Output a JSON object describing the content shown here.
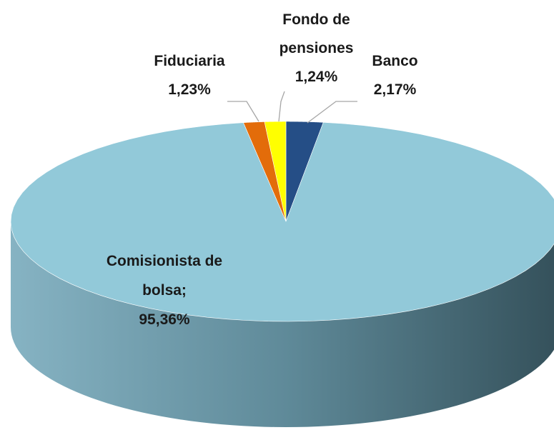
{
  "chart_data": {
    "type": "pie",
    "categories": [
      "Banco",
      "Comisionista de bolsa;",
      "Fiduciaria",
      "Fondo de pensiones"
    ],
    "values": [
      2.17,
      95.36,
      1.23,
      1.24
    ],
    "value_labels": [
      "2,17%",
      "95,36%",
      "1,23%",
      "1,24%"
    ],
    "colors": [
      "#254e86",
      "#92c9d9",
      "#e36c0a",
      "#ffff00"
    ]
  }
}
